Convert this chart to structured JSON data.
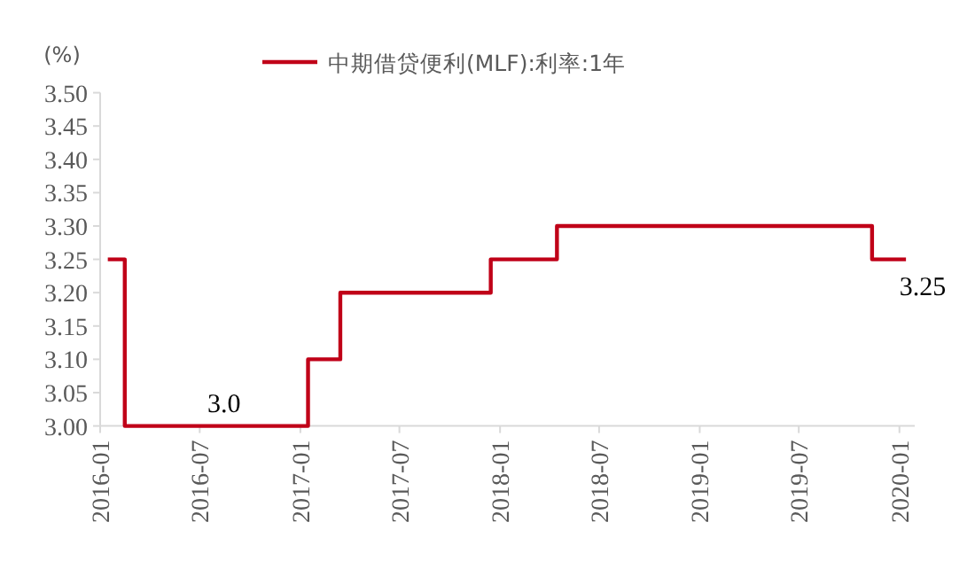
{
  "chart_data": {
    "type": "step",
    "ylabel": "(%)",
    "legend": "top",
    "x": [
      "2016-01-15",
      "2016-02-15",
      "2017-01-15",
      "2017-03-15",
      "2017-12-15",
      "2018-04-15",
      "2019-11-12",
      "2020-01-13"
    ],
    "series": [
      {
        "name": "中期借贷便利(MLF):利率:1年",
        "color": "#c00018",
        "values": [
          3.25,
          3.0,
          3.1,
          3.2,
          3.25,
          3.3,
          3.25,
          3.25
        ]
      }
    ],
    "xlim": [
      "2016-01-01",
      "2020-01-29"
    ],
    "xticks": [
      "2016-01",
      "2016-07",
      "2017-01",
      "2017-07",
      "2018-01",
      "2018-07",
      "2019-01",
      "2019-07",
      "2020-01"
    ],
    "ylim": [
      3.0,
      3.5
    ],
    "yticks": [
      {
        "value": 3.0,
        "label": "3.00"
      },
      {
        "value": 3.05,
        "label": "3.05"
      },
      {
        "value": 3.1,
        "label": "3.10"
      },
      {
        "value": 3.15,
        "label": "3.15"
      },
      {
        "value": 3.2,
        "label": "3.20"
      },
      {
        "value": 3.25,
        "label": "3.25"
      },
      {
        "value": 3.3,
        "label": "3.30"
      },
      {
        "value": 3.35,
        "label": "3.35"
      },
      {
        "value": 3.4,
        "label": "3.40"
      },
      {
        "value": 3.45,
        "label": "3.45"
      },
      {
        "value": 3.5,
        "label": "3.50"
      }
    ],
    "annotations": [
      {
        "text": "3.0",
        "x": "2016-07-15",
        "y": 3.0
      },
      {
        "text": "3.25",
        "x": "2020-01-01",
        "y": 3.25
      }
    ]
  }
}
